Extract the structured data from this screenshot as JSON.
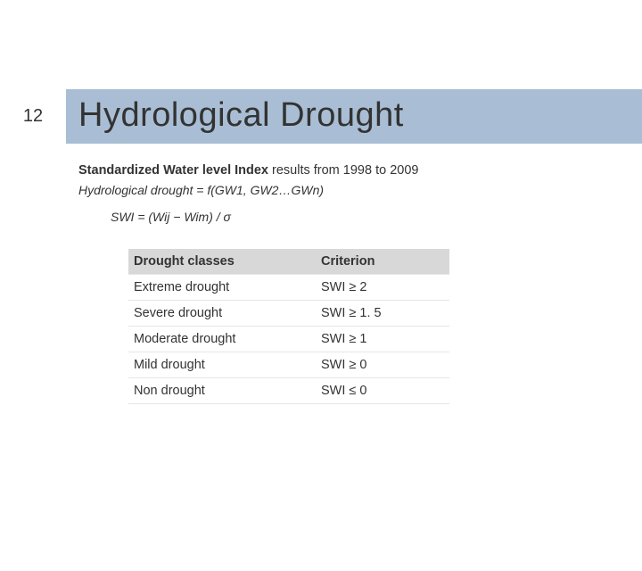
{
  "page_number": "12",
  "title": "Hydrological Drought",
  "subtitle_bold": "Standardized Water level Index",
  "subtitle_rest": " results from 1998 to 2009",
  "func_line": "Hydrological drought = f(GW1, GW2…GWn)",
  "formula": "SWI = (Wij − Wim) / σ",
  "table": {
    "columns": [
      "Drought classes",
      "Criterion"
    ],
    "rows": [
      [
        "Extreme drought",
        "SWI ≥ 2"
      ],
      [
        "Severe drought",
        "SWI ≥ 1. 5"
      ],
      [
        "Moderate drought",
        "SWI ≥ 1"
      ],
      [
        "Mild drought",
        "SWI ≥ 0"
      ],
      [
        "Non drought",
        "SWI ≤ 0"
      ]
    ],
    "header_bg": "#d8d8d8",
    "row_border": "#e6e6e6"
  },
  "colors": {
    "title_bg": "#a9bed4",
    "text": "#333333",
    "page_bg": "#ffffff"
  },
  "typography": {
    "title_fontsize": 38,
    "body_fontsize": 14.5,
    "formula_fontsize": 14,
    "pagenum_fontsize": 20
  }
}
